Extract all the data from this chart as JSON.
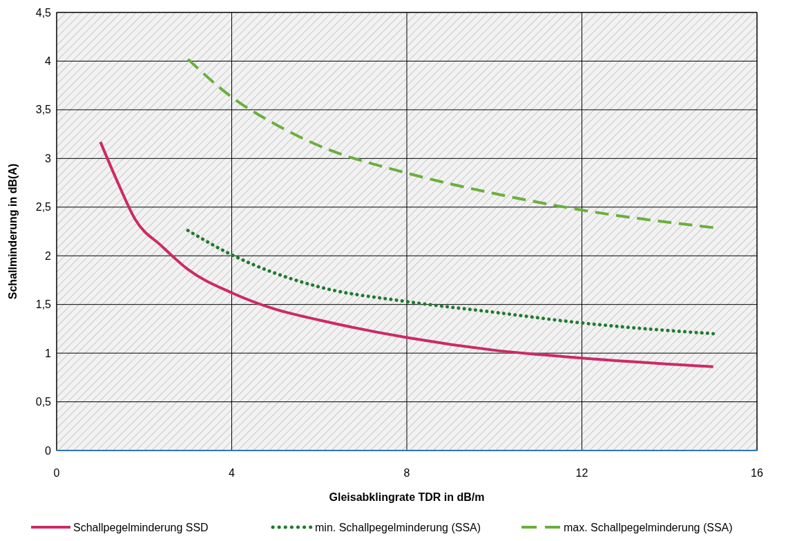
{
  "chart_data": {
    "type": "line",
    "xlabel": "Gleisabklingrate TDR in dB/m",
    "ylabel": "Schallminderung in dB(A)",
    "xlim": [
      0,
      16
    ],
    "xticks": [
      0,
      4,
      8,
      12,
      16
    ],
    "ylim": [
      0,
      4.5
    ],
    "yticks": [
      0,
      {
        "value": 0.5,
        "label": "0,5"
      },
      1,
      {
        "value": 1.5,
        "label": "1,5"
      },
      2,
      {
        "value": 2.5,
        "label": "2,5"
      },
      3,
      {
        "value": 3.5,
        "label": "3,5"
      },
      4,
      {
        "value": 4.5,
        "label": "4,5"
      }
    ],
    "grid": true,
    "legend": "bottom",
    "marker": "none",
    "series": [
      {
        "name": "Schallpegelminderung SSD",
        "color": "#cc2a66",
        "line_style": "solid",
        "x": [
          1,
          1.4,
          1.8,
          2.4,
          3,
          4,
          5,
          6,
          8,
          10,
          12,
          15
        ],
        "values": [
          3.17,
          2.75,
          2.37,
          2.1,
          1.86,
          1.62,
          1.45,
          1.34,
          1.16,
          1.03,
          0.95,
          0.86
        ]
      },
      {
        "name": "min. Schallpegelminderung (SSA)",
        "color": "#1f7a2e",
        "line_style": "dotted",
        "x": [
          3,
          4,
          5,
          6,
          8,
          10,
          12,
          15
        ],
        "values": [
          2.26,
          2.01,
          1.82,
          1.68,
          1.53,
          1.42,
          1.31,
          1.2
        ]
      },
      {
        "name": "max. Schallpegelminderung (SSA)",
        "color": "#6aaf3d",
        "line_style": "dashed",
        "x": [
          3,
          4,
          5,
          6,
          8,
          10,
          12,
          15
        ],
        "values": [
          4.02,
          3.63,
          3.35,
          3.13,
          2.85,
          2.64,
          2.47,
          2.29
        ]
      }
    ]
  }
}
